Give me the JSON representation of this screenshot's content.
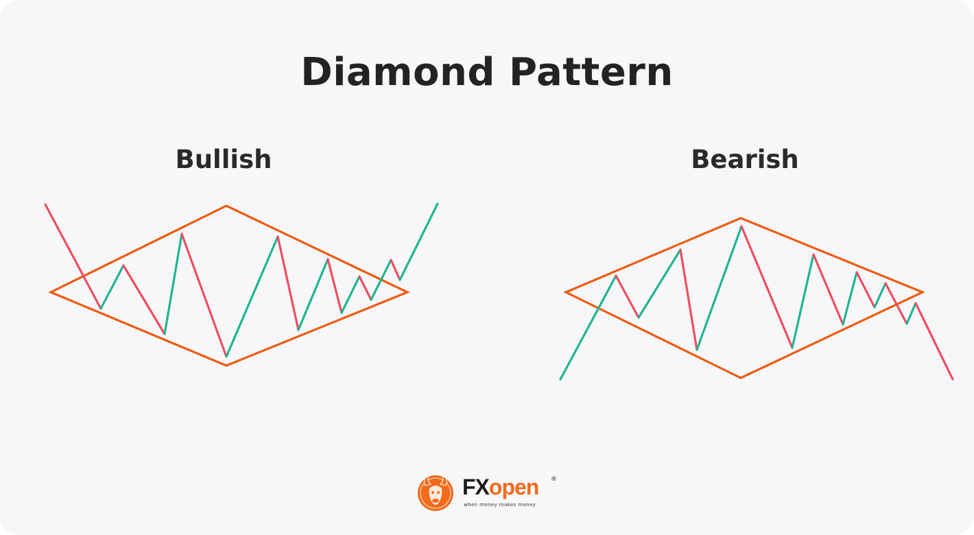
{
  "title": "Diamond Pattern",
  "panels": [
    {
      "id": "bullish",
      "label": "Bullish"
    },
    {
      "id": "bearish",
      "label": "Bearish"
    }
  ],
  "colors": {
    "background": "#f7f7f9",
    "diamond": "#f05a0e",
    "up_move": "#1fb58f",
    "down_move": "#ef4d61",
    "text": "#232323",
    "brand_orange": "#f26a1b"
  },
  "logo": {
    "wordmark_dark": "FX",
    "wordmark_accent": "open",
    "registered": "®",
    "tagline": "when money makes money",
    "icon": "bull-head-icon"
  }
}
